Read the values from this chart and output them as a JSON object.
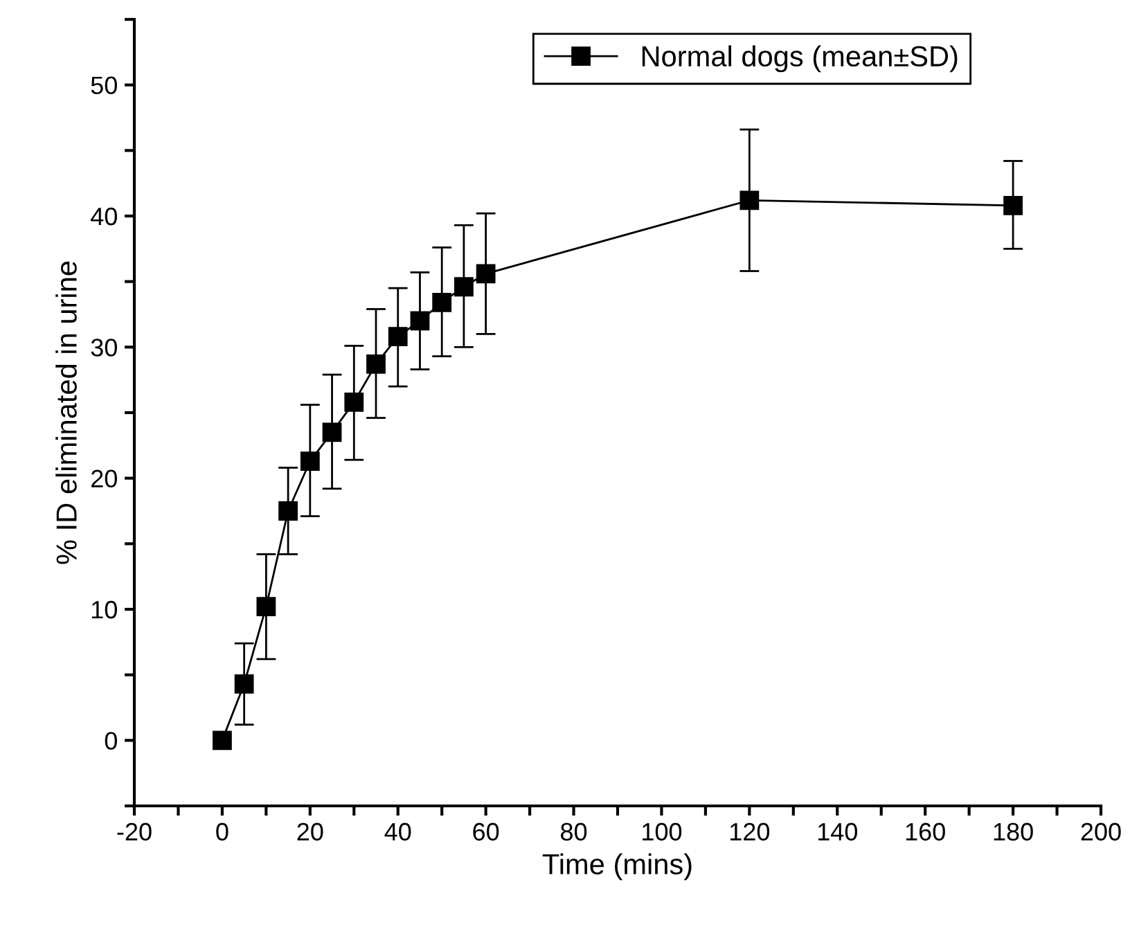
{
  "chart_data": {
    "type": "line",
    "xlabel": "Time (mins)",
    "ylabel": "% ID eliminated in urine",
    "x": [
      0,
      5,
      10,
      15,
      20,
      25,
      30,
      35,
      40,
      45,
      50,
      55,
      60,
      120,
      180
    ],
    "series": [
      {
        "name": "Normal dogs (mean±SD)",
        "color": "#000000",
        "values": [
          0,
          4.3,
          10.2,
          17.5,
          21.3,
          23.5,
          25.8,
          28.7,
          30.8,
          32.0,
          33.4,
          34.6,
          35.6,
          41.2,
          40.8
        ],
        "errors": [
          null,
          [
            1.2,
            7.4
          ],
          [
            6.2,
            14.2
          ],
          [
            14.2,
            20.8
          ],
          [
            17.1,
            25.6
          ],
          [
            19.2,
            27.9
          ],
          [
            21.4,
            30.1
          ],
          [
            24.6,
            32.9
          ],
          [
            27.0,
            34.5
          ],
          [
            28.3,
            35.7
          ],
          [
            29.3,
            37.6
          ],
          [
            30.0,
            39.3
          ],
          [
            31.0,
            40.2
          ],
          [
            35.8,
            46.6
          ],
          [
            37.5,
            44.2
          ]
        ]
      }
    ],
    "marker": "square",
    "line_style": "solid",
    "legend": "top right",
    "grid": false,
    "xlim": [
      -20,
      200
    ],
    "ylim": [
      -5,
      55
    ],
    "xticks": [
      -20,
      {
        "value": -10,
        "label": null
      },
      0,
      {
        "value": 10,
        "label": null
      },
      20,
      {
        "value": 30,
        "label": null
      },
      40,
      {
        "value": 50,
        "label": null
      },
      60,
      {
        "value": 70,
        "label": null
      },
      80,
      {
        "value": 90,
        "label": null
      },
      100,
      {
        "value": 110,
        "label": null
      },
      120,
      {
        "value": 130,
        "label": null
      },
      140,
      {
        "value": 150,
        "label": null
      },
      160,
      {
        "value": 170,
        "label": null
      },
      180,
      {
        "value": 190,
        "label": null
      },
      200
    ],
    "yticks": [
      {
        "value": -5,
        "label": null
      },
      0,
      {
        "value": 5,
        "label": null
      },
      10,
      {
        "value": 15,
        "label": null
      },
      20,
      {
        "value": 25,
        "label": null
      },
      30,
      {
        "value": 35,
        "label": null
      },
      40,
      {
        "value": 45,
        "label": null
      },
      50,
      {
        "value": 55,
        "label": null
      }
    ]
  }
}
